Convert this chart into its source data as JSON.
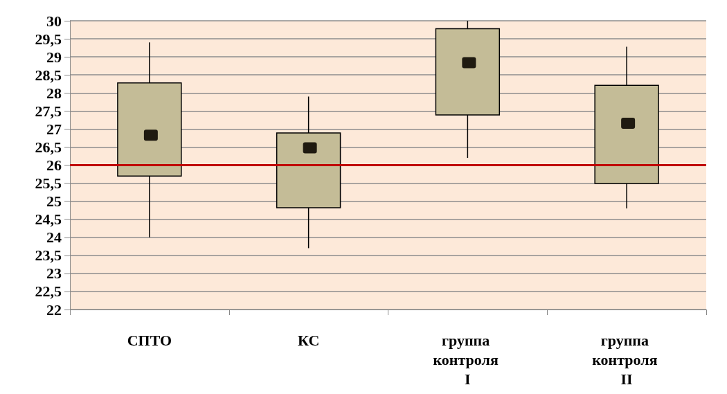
{
  "chart_data": {
    "type": "box",
    "categories": [
      "СПТО",
      "КС",
      "группа контроля I",
      "группа контроля II"
    ],
    "boxes": [
      {
        "low": 24.0,
        "q1": 25.7,
        "median": 26.83,
        "q3": 28.28,
        "high": 29.4
      },
      {
        "low": 23.7,
        "q1": 24.82,
        "median": 26.48,
        "q3": 26.89,
        "high": 27.9
      },
      {
        "low": 26.2,
        "q1": 27.39,
        "median": 28.84,
        "q3": 29.78,
        "high": 30.0
      },
      {
        "low": 24.8,
        "q1": 25.49,
        "median": 27.16,
        "q3": 28.21,
        "high": 29.28
      }
    ],
    "color": "#c4bc97",
    "ylim": [
      22,
      30
    ],
    "yticks": [
      22,
      {
        "value": 22.5,
        "label": "22,5"
      },
      23,
      {
        "value": 23.5,
        "label": "23,5"
      },
      24,
      {
        "value": 24.5,
        "label": "24,5"
      },
      25,
      {
        "value": 25.5,
        "label": "25,5"
      },
      26,
      {
        "value": 26.5,
        "label": "26,5"
      },
      27,
      {
        "value": 27.5,
        "label": "27,5"
      },
      28,
      {
        "value": 28.5,
        "label": "28,5"
      },
      29,
      {
        "value": 29.5,
        "label": "29,5"
      },
      30
    ],
    "ref_lines": [
      {
        "axis": "y",
        "value": 26,
        "color": "#c00000"
      }
    ],
    "grid": "y",
    "marker": "square"
  }
}
